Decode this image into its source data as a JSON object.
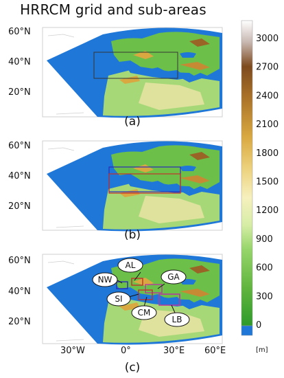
{
  "figure": {
    "title": "HRRCM grid and sub-areas",
    "panels": [
      {
        "id": "a",
        "label": "(a)"
      },
      {
        "id": "b",
        "label": "(b)"
      },
      {
        "id": "c",
        "label": "(c)"
      }
    ],
    "lat_labels": [
      "60°N",
      "40°N",
      "20°N"
    ],
    "lon_labels": [
      "30°W",
      "0°",
      "30°E",
      "60°E"
    ],
    "subareas": [
      "AL",
      "NW",
      "GA",
      "SI",
      "CM",
      "LB"
    ],
    "colorbar": {
      "unit": "[m]",
      "ticks": [
        "3000",
        "2700",
        "2400",
        "2100",
        "1800",
        "1500",
        "1200",
        "900",
        "600",
        "300",
        "0"
      ],
      "colors": {
        "ocean": "#1f78d8",
        "low_green": "#2e9b2a",
        "green": "#6cc04a",
        "light_green": "#c6e89a",
        "yellow": "#f4efb2",
        "tan": "#d9b04a",
        "brown": "#9a6426",
        "light_gray": "#d8d0cc"
      }
    }
  },
  "chart_data": {
    "type": "heatmap",
    "title": "HRRCM grid and sub-areas",
    "xlabel": "",
    "ylabel": "",
    "x_ticks": [
      "30°W",
      "0°",
      "30°E",
      "60°E"
    ],
    "y_ticks": [
      "60°N",
      "40°N",
      "20°N"
    ],
    "colorbar_label": "[m]",
    "colorbar_range": [
      0,
      3000
    ],
    "colorbar_ticks": [
      0,
      300,
      600,
      900,
      1200,
      1500,
      1800,
      2100,
      2400,
      2700,
      3000
    ],
    "panels": [
      "(a)",
      "(b)",
      "(c)"
    ],
    "subareas": [
      "AL",
      "NW",
      "GA",
      "SI",
      "CM",
      "LB"
    ]
  }
}
